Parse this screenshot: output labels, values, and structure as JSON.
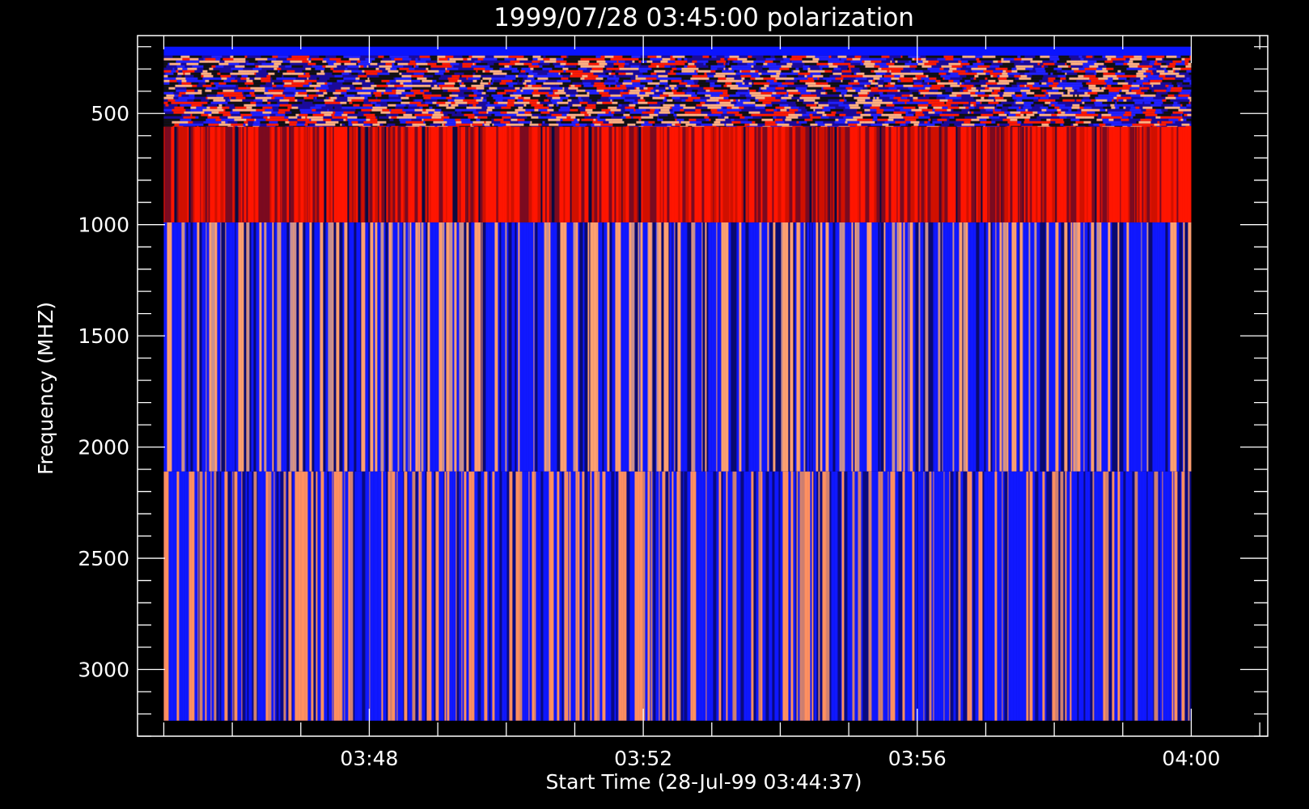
{
  "chart_data": {
    "type": "heatmap",
    "title": "1999/07/28 03:45:00 polarization",
    "xlabel": "Start Time (28-Jul-99 03:44:37)",
    "ylabel": "Frequency (MHZ)",
    "x_ticks": [
      "03:48",
      "03:52",
      "03:56",
      "04:00"
    ],
    "y_ticks": [
      500,
      1000,
      1500,
      2000,
      2500,
      3000
    ],
    "y_axis_inverted": true,
    "ylim": [
      3300,
      150
    ],
    "xlim": [
      "03:44:37",
      "04:01:07"
    ],
    "data_time_range": [
      "03:45:00",
      "04:00:00"
    ],
    "data_freq_range": [
      200,
      3230
    ],
    "bands": [
      {
        "freq_range": [
          200,
          240
        ],
        "pattern": "solid",
        "colors": [
          "#0a14ff"
        ]
      },
      {
        "freq_range": [
          240,
          560
        ],
        "pattern": "speckled",
        "colors": [
          "#2020ff",
          "#1a0a9a",
          "#ff1a00",
          "#ffb080",
          "#101010"
        ]
      },
      {
        "freq_range": [
          560,
          990
        ],
        "pattern": "vertical-stripes",
        "colors": [
          "#ff1500",
          "#d01000",
          "#7a0a20",
          "#0a0a40"
        ]
      },
      {
        "freq_range": [
          990,
          2110
        ],
        "pattern": "vertical-stripes",
        "colors": [
          "#1018ff",
          "#0a0a70",
          "#ffa070",
          "#c89090"
        ]
      },
      {
        "freq_range": [
          2110,
          3230
        ],
        "pattern": "vertical-stripes",
        "colors": [
          "#1018ff",
          "#0a0a80",
          "#ff9060",
          "#d08070"
        ]
      }
    ],
    "grid": false,
    "legend": "none"
  }
}
